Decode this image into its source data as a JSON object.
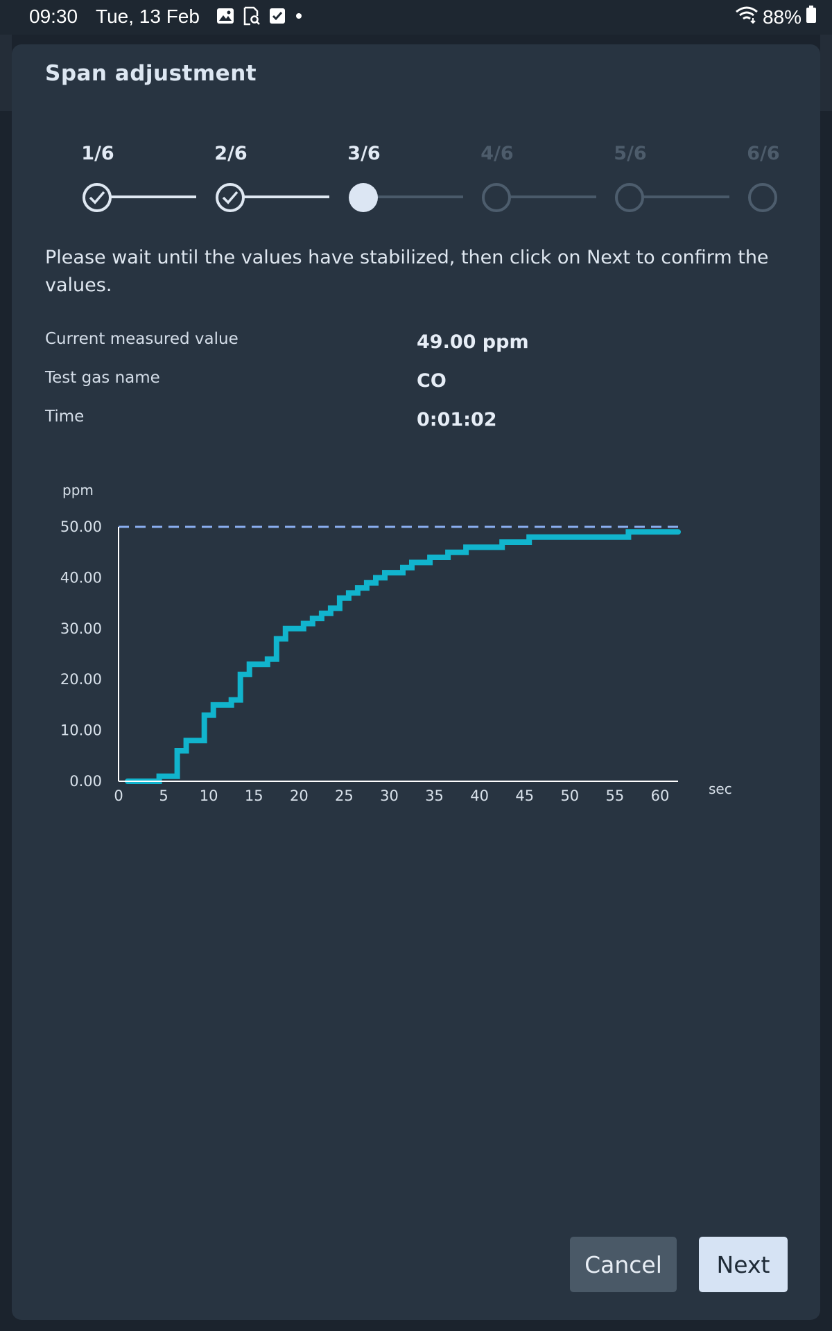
{
  "status_bar": {
    "time": "09:30",
    "date": "Tue, 13 Feb",
    "notification_icons": [
      "image-icon",
      "document-search-icon",
      "checkbox-icon",
      "dot-icon"
    ],
    "battery": "88%",
    "wifi_icon": "wifi-icon",
    "battery_icon": "battery-icon"
  },
  "dialog": {
    "title": "Span adjustment",
    "steps": [
      {
        "label": "1/6",
        "state": "done"
      },
      {
        "label": "2/6",
        "state": "done"
      },
      {
        "label": "3/6",
        "state": "active"
      },
      {
        "label": "4/6",
        "state": "todo"
      },
      {
        "label": "5/6",
        "state": "todo"
      },
      {
        "label": "6/6",
        "state": "todo"
      }
    ],
    "instruction": "Please wait until the values have stabilized, then click on Next to confirm the values.",
    "fields": [
      {
        "label": "Current measured value",
        "value": "49.00 ppm"
      },
      {
        "label": "Test gas name",
        "value": "CO"
      },
      {
        "label": "Time",
        "value": "0:01:02"
      }
    ],
    "buttons": {
      "cancel": "Cancel",
      "next": "Next"
    }
  },
  "chart_data": {
    "type": "line",
    "ylabel": "ppm",
    "xlabel": "sec",
    "xlim": [
      0,
      62
    ],
    "ylim": [
      0,
      50
    ],
    "x_ticks": [
      "0",
      "5",
      "10",
      "15",
      "20",
      "25",
      "30",
      "35",
      "40",
      "45",
      "50",
      "55",
      "60"
    ],
    "x_tick_values": [
      0,
      5,
      10,
      15,
      20,
      25,
      30,
      35,
      40,
      45,
      50,
      55,
      60
    ],
    "y_ticks": [
      "0.00",
      "10.00",
      "20.00",
      "30.00",
      "40.00",
      "50.00"
    ],
    "y_tick_values": [
      0,
      10,
      20,
      30,
      40,
      50
    ],
    "target_value": 50,
    "colors": {
      "series": "#11b4cd",
      "target": "#8aaef0",
      "axis": "#ffffff"
    },
    "series": [
      {
        "style": "step",
        "points": [
          [
            1,
            0
          ],
          [
            4.5,
            0
          ],
          [
            4.5,
            1
          ],
          [
            6.5,
            1
          ],
          [
            6.5,
            6
          ],
          [
            7.5,
            6
          ],
          [
            7.5,
            8
          ],
          [
            9.5,
            8
          ],
          [
            9.5,
            13
          ],
          [
            10.5,
            13
          ],
          [
            10.5,
            15
          ],
          [
            12.5,
            15
          ],
          [
            12.5,
            16
          ],
          [
            13.5,
            16
          ],
          [
            13.5,
            21
          ],
          [
            14.5,
            21
          ],
          [
            14.5,
            23
          ],
          [
            16.5,
            23
          ],
          [
            16.5,
            24
          ],
          [
            17.5,
            24
          ],
          [
            17.5,
            28
          ],
          [
            18.5,
            28
          ],
          [
            18.5,
            30
          ],
          [
            20.5,
            30
          ],
          [
            20.5,
            31
          ],
          [
            21.5,
            31
          ],
          [
            21.5,
            32
          ],
          [
            22.5,
            32
          ],
          [
            22.5,
            33
          ],
          [
            23.5,
            33
          ],
          [
            23.5,
            34
          ],
          [
            24.5,
            34
          ],
          [
            24.5,
            36
          ],
          [
            25.5,
            36
          ],
          [
            25.5,
            37
          ],
          [
            26.5,
            37
          ],
          [
            26.5,
            38
          ],
          [
            27.5,
            38
          ],
          [
            27.5,
            39
          ],
          [
            28.5,
            39
          ],
          [
            28.5,
            40
          ],
          [
            29.5,
            40
          ],
          [
            29.5,
            41
          ],
          [
            31.5,
            41
          ],
          [
            31.5,
            42
          ],
          [
            32.5,
            42
          ],
          [
            32.5,
            43
          ],
          [
            34.5,
            43
          ],
          [
            34.5,
            44
          ],
          [
            36.5,
            44
          ],
          [
            36.5,
            45
          ],
          [
            38.5,
            45
          ],
          [
            38.5,
            46
          ],
          [
            42.5,
            46
          ],
          [
            42.5,
            47
          ],
          [
            45.5,
            47
          ],
          [
            45.5,
            48
          ],
          [
            56.5,
            48
          ],
          [
            56.5,
            49
          ],
          [
            62,
            49
          ]
        ]
      }
    ]
  }
}
